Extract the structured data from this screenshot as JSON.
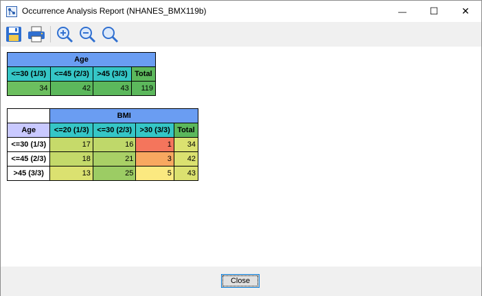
{
  "window": {
    "title": "Occurrence Analysis Report (NHANES_BMX119b)",
    "minimize_glyph": "—",
    "maximize_glyph": "☐",
    "close_glyph": "✕"
  },
  "toolbar": {
    "items": [
      "save-icon",
      "print-icon",
      "zoom-in-icon",
      "zoom-out-icon",
      "zoom-reset-icon"
    ]
  },
  "age_table": {
    "title": "Age",
    "headers": [
      "<=30 (1/3)",
      "<=45 (2/3)",
      ">45 (3/3)",
      "Total"
    ],
    "values": [
      "34",
      "42",
      "43",
      "119"
    ],
    "value_colors": [
      "#6cbf5f",
      "#5cb85c",
      "#5cb85c",
      "#5cb85c"
    ]
  },
  "bmi_table": {
    "title": "BMI",
    "row_header": "Age",
    "headers": [
      "<=20 (1/3)",
      "<=30 (2/3)",
      ">30 (3/3)",
      "Total"
    ],
    "rows": [
      {
        "label": "<=30 (1/3)",
        "values": [
          "17",
          "16",
          "1",
          "34"
        ],
        "colors": [
          "#c6da6a",
          "#bfd86a",
          "#f4755c",
          "#dbe170"
        ]
      },
      {
        "label": "<=45 (2/3)",
        "values": [
          "18",
          "21",
          "3",
          "42"
        ],
        "colors": [
          "#c4d96a",
          "#a9d066",
          "#f8a860",
          "#dbe170"
        ]
      },
      {
        "label": ">45 (3/3)",
        "values": [
          "13",
          "25",
          "5",
          "43"
        ],
        "colors": [
          "#dbe170",
          "#9ccc64",
          "#fbe980",
          "#dbe170"
        ]
      }
    ]
  },
  "footer": {
    "close_label": "Close"
  }
}
